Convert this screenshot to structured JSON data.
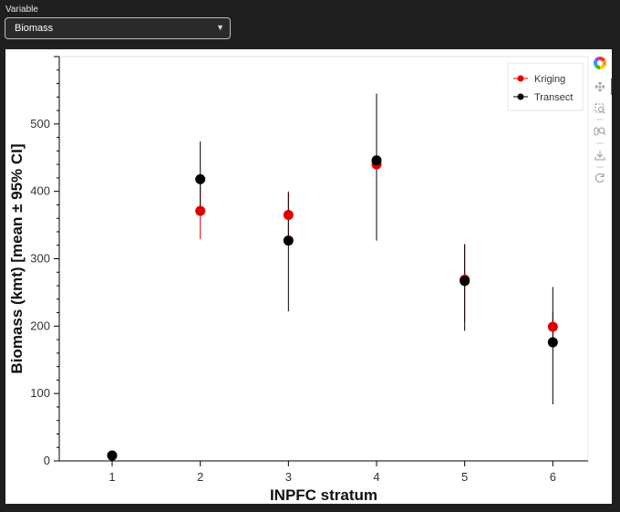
{
  "widget": {
    "label": "Variable",
    "selected": "Biomass"
  },
  "chart_data": {
    "type": "scatter",
    "title": "",
    "xlabel": "INPFC stratum",
    "ylabel": "Biomass (kmt) [mean ± 95% CI]",
    "x_ticks": [
      "1",
      "2",
      "3",
      "4",
      "5",
      "6"
    ],
    "y_ticks": [
      "0",
      "100",
      "200",
      "300",
      "400",
      "500"
    ],
    "xlim": [
      0.4,
      6.4
    ],
    "ylim": [
      0,
      600
    ],
    "legend_position": "top-right",
    "series": [
      {
        "name": "Kriging",
        "color": "#e00000",
        "x": [
          1,
          2,
          3,
          4,
          5,
          6
        ],
        "y": [
          8,
          371,
          365,
          440,
          269,
          199
        ],
        "ci_low": [
          4,
          329,
          328,
          433,
          206,
          178
        ],
        "ci_high": [
          12,
          411,
          400,
          447,
          322,
          220
        ]
      },
      {
        "name": "Transect",
        "color": "#000000",
        "x": [
          1,
          2,
          3,
          4,
          5,
          6
        ],
        "y": [
          8,
          418,
          327,
          446,
          267,
          176
        ],
        "ci_low": [
          5,
          374,
          222,
          327,
          193,
          84
        ],
        "ci_high": [
          11,
          474,
          398,
          545,
          321,
          258
        ]
      }
    ]
  },
  "toolbar": {
    "icons": [
      "bokeh-logo-icon",
      "pan-icon",
      "box-zoom-icon",
      "wheel-zoom-icon",
      "save-icon",
      "reset-icon"
    ]
  }
}
